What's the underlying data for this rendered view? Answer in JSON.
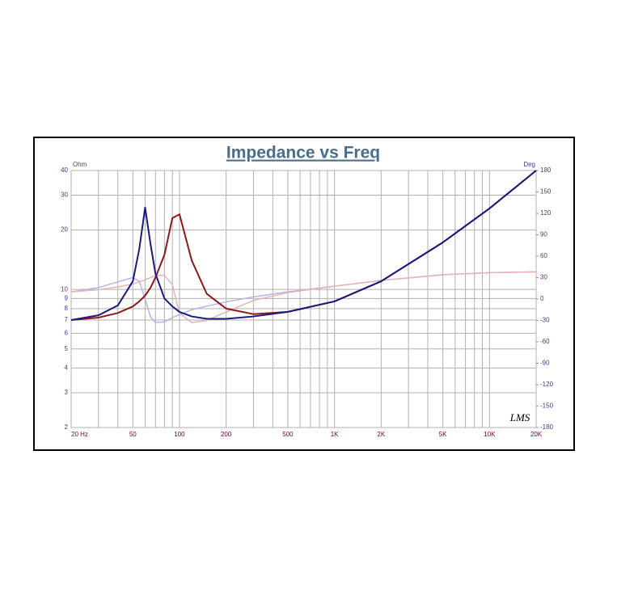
{
  "chart_data": {
    "type": "line",
    "title": "Impedance vs Freq",
    "y_label": "Ohm",
    "y2_label": "Deg",
    "watermark": "LMS",
    "x_log": true,
    "y_log": true,
    "grid": true,
    "xlim": [
      20,
      20000
    ],
    "xticks": [
      {
        "value": 20,
        "label": "20  Hz"
      },
      50,
      100,
      200,
      500,
      {
        "value": 1000,
        "label": "1K"
      },
      {
        "value": 2000,
        "label": "2K"
      },
      {
        "value": 5000,
        "label": "5K"
      },
      {
        "value": 10000,
        "label": "10K"
      },
      {
        "value": 20000,
        "label": "20K"
      }
    ],
    "xminor": [
      30,
      40,
      60,
      70,
      80,
      90,
      300,
      400,
      600,
      700,
      800,
      900,
      3000,
      4000,
      6000,
      7000,
      8000,
      9000
    ],
    "ylim": [
      2,
      40
    ],
    "yticks": [
      2,
      3,
      4,
      5,
      6,
      7,
      8,
      9,
      10,
      20,
      30,
      40
    ],
    "y2lim": [
      -180,
      180
    ],
    "y2ticks": [
      -180,
      -150,
      -120,
      -90,
      -60,
      -30,
      0,
      30,
      60,
      90,
      120,
      150,
      180
    ],
    "x": [
      20,
      30,
      40,
      50,
      55,
      60,
      65,
      70,
      80,
      90,
      100,
      120,
      150,
      200,
      300,
      500,
      1000,
      2000,
      5000,
      10000,
      20000
    ],
    "series": [
      {
        "color": "#b4b4e6",
        "axis": "y2",
        "values": [
          10,
          16,
          24,
          30,
          25,
          0,
          -25,
          -33,
          -32,
          -26,
          -22,
          -15,
          -10,
          -4,
          3,
          10,
          18,
          26,
          34,
          37,
          38
        ]
      },
      {
        "color": "#e6b4b4",
        "axis": "y2",
        "values": [
          10,
          13,
          17,
          21,
          24,
          27,
          30,
          33,
          33,
          20,
          -20,
          -33,
          -30,
          -18,
          -2,
          9,
          18,
          26,
          34,
          37,
          38
        ]
      },
      {
        "color": "#8b1a1a",
        "values": [
          7,
          7.2,
          7.6,
          8.2,
          8.7,
          9.3,
          10.2,
          11.5,
          15,
          23,
          24,
          14,
          9.5,
          8,
          7.5,
          7.7,
          8.7,
          11,
          17.3,
          25.7,
          40
        ]
      },
      {
        "color": "#1a1a80",
        "values": [
          7,
          7.4,
          8.3,
          11,
          16,
          26,
          17,
          12,
          9,
          8.2,
          7.7,
          7.3,
          7.1,
          7.1,
          7.3,
          7.7,
          8.7,
          11,
          17.3,
          25.7,
          40
        ]
      }
    ]
  }
}
